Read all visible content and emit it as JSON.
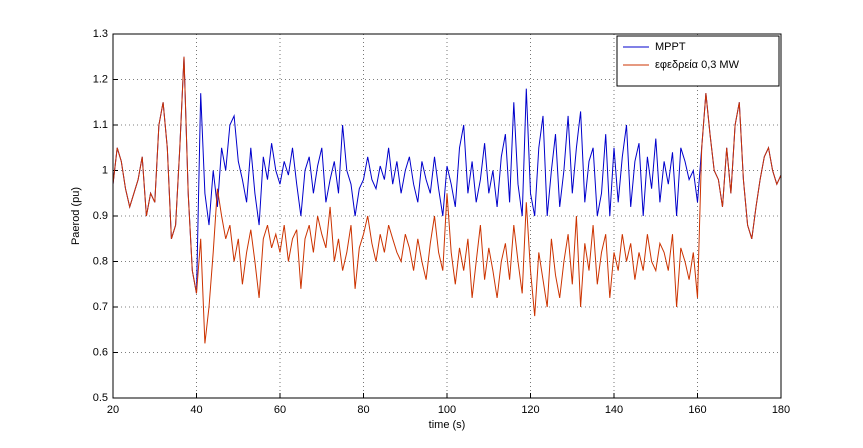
{
  "chart_data": {
    "type": "line",
    "xlabel": "time (s)",
    "ylabel": "Paerod (pu)",
    "x": [
      20,
      21,
      22,
      23,
      24,
      25,
      26,
      27,
      28,
      29,
      30,
      31,
      32,
      33,
      34,
      35,
      36,
      37,
      38,
      39,
      40,
      41,
      42,
      43,
      44,
      45,
      46,
      47,
      48,
      49,
      50,
      51,
      52,
      53,
      54,
      55,
      56,
      57,
      58,
      59,
      60,
      61,
      62,
      63,
      64,
      65,
      66,
      67,
      68,
      69,
      70,
      71,
      72,
      73,
      74,
      75,
      76,
      77,
      78,
      79,
      80,
      81,
      82,
      83,
      84,
      85,
      86,
      87,
      88,
      89,
      90,
      91,
      92,
      93,
      94,
      95,
      96,
      97,
      98,
      99,
      100,
      101,
      102,
      103,
      104,
      105,
      106,
      107,
      108,
      109,
      110,
      111,
      112,
      113,
      114,
      115,
      116,
      117,
      118,
      119,
      120,
      121,
      122,
      123,
      124,
      125,
      126,
      127,
      128,
      129,
      130,
      131,
      132,
      133,
      134,
      135,
      136,
      137,
      138,
      139,
      140,
      141,
      142,
      143,
      144,
      145,
      146,
      147,
      148,
      149,
      150,
      151,
      152,
      153,
      154,
      155,
      156,
      157,
      158,
      159,
      160,
      161,
      162,
      163,
      164,
      165,
      166,
      167,
      168,
      169,
      170,
      171,
      172,
      173,
      174,
      175,
      176,
      177,
      178,
      179,
      180
    ],
    "series": [
      {
        "name": "MPPT",
        "color": "#0000cc",
        "values": [
          0.97,
          1.05,
          1.02,
          0.96,
          0.92,
          0.95,
          0.98,
          1.03,
          0.9,
          0.95,
          0.93,
          1.1,
          1.15,
          1.05,
          0.85,
          0.88,
          1.05,
          1.25,
          0.95,
          0.78,
          0.73,
          1.17,
          0.95,
          0.88,
          1.0,
          0.92,
          1.05,
          1.0,
          1.1,
          1.12,
          1.02,
          0.98,
          0.93,
          1.05,
          0.95,
          0.88,
          1.03,
          0.98,
          1.06,
          1.0,
          0.97,
          1.02,
          0.99,
          1.05,
          0.97,
          0.9,
          1.0,
          1.03,
          0.95,
          1.01,
          1.05,
          0.93,
          0.98,
          1.02,
          0.95,
          1.1,
          1.0,
          0.97,
          0.9,
          0.96,
          0.98,
          1.03,
          0.98,
          0.96,
          1.01,
          0.98,
          1.05,
          0.97,
          1.02,
          0.95,
          1.0,
          1.03,
          0.97,
          0.93,
          1.02,
          0.98,
          0.95,
          1.03,
          0.96,
          0.9,
          1.01,
          0.97,
          0.92,
          1.05,
          1.1,
          0.95,
          1.02,
          0.93,
          0.98,
          1.06,
          0.95,
          1.0,
          0.92,
          1.03,
          1.08,
          0.93,
          1.15,
          0.97,
          0.9,
          1.18,
          0.95,
          0.9,
          1.05,
          1.12,
          0.9,
          1.0,
          1.08,
          0.92,
          1.0,
          1.12,
          0.95,
          1.05,
          1.13,
          0.93,
          1.02,
          1.05,
          0.9,
          0.95,
          1.08,
          0.9,
          1.05,
          0.93,
          1.03,
          1.1,
          0.92,
          1.02,
          1.06,
          0.9,
          1.03,
          0.96,
          1.07,
          0.93,
          1.02,
          0.97,
          1.04,
          0.9,
          1.05,
          1.02,
          0.98,
          1.0,
          0.93,
          1.05,
          1.17,
          1.08,
          1.0,
          0.98,
          0.92,
          1.05,
          0.95,
          1.1,
          1.15,
          0.98,
          0.88,
          0.85,
          0.92,
          0.98,
          1.03,
          1.05,
          1.0,
          0.97,
          0.99
        ]
      },
      {
        "name": "εφεδρεία 0,3 MW",
        "color": "#cc3300",
        "values": [
          0.97,
          1.05,
          1.02,
          0.96,
          0.92,
          0.95,
          0.98,
          1.03,
          0.9,
          0.95,
          0.93,
          1.1,
          1.15,
          1.05,
          0.85,
          0.88,
          1.05,
          1.25,
          0.95,
          0.78,
          0.73,
          0.85,
          0.62,
          0.7,
          0.82,
          0.96,
          0.9,
          0.85,
          0.88,
          0.8,
          0.85,
          0.75,
          0.82,
          0.87,
          0.8,
          0.72,
          0.85,
          0.88,
          0.83,
          0.86,
          0.82,
          0.88,
          0.8,
          0.85,
          0.87,
          0.74,
          0.85,
          0.88,
          0.82,
          0.9,
          0.86,
          0.83,
          0.92,
          0.8,
          0.85,
          0.78,
          0.82,
          0.88,
          0.74,
          0.83,
          0.86,
          0.9,
          0.84,
          0.8,
          0.86,
          0.82,
          0.88,
          0.85,
          0.82,
          0.8,
          0.86,
          0.83,
          0.78,
          0.85,
          0.8,
          0.76,
          0.84,
          0.9,
          0.82,
          0.78,
          0.95,
          0.82,
          0.75,
          0.83,
          0.78,
          0.85,
          0.72,
          0.8,
          0.88,
          0.76,
          0.83,
          0.78,
          0.72,
          0.8,
          0.84,
          0.76,
          0.88,
          0.8,
          0.73,
          0.93,
          0.78,
          0.68,
          0.82,
          0.76,
          0.7,
          0.85,
          0.77,
          0.72,
          0.8,
          0.86,
          0.75,
          0.9,
          0.7,
          0.84,
          0.78,
          0.88,
          0.75,
          0.82,
          0.86,
          0.72,
          0.82,
          0.78,
          0.86,
          0.8,
          0.84,
          0.76,
          0.82,
          0.78,
          0.86,
          0.8,
          0.78,
          0.84,
          0.82,
          0.78,
          0.86,
          0.7,
          0.83,
          0.8,
          0.76,
          0.82,
          0.72,
          1.05,
          1.17,
          1.08,
          1.0,
          0.98,
          0.92,
          1.05,
          0.95,
          1.1,
          1.15,
          0.98,
          0.88,
          0.85,
          0.92,
          0.98,
          1.03,
          1.05,
          1.0,
          0.97,
          0.99
        ]
      }
    ],
    "xlim": [
      20,
      180
    ],
    "ylim": [
      0.5,
      1.3
    ],
    "xticks": [
      20,
      40,
      60,
      80,
      100,
      120,
      140,
      160,
      180
    ],
    "yticks": [
      0.5,
      0.6,
      0.7,
      0.8,
      0.9,
      1,
      1.1,
      1.2,
      1.3
    ],
    "grid": true,
    "legend": "northeast"
  }
}
